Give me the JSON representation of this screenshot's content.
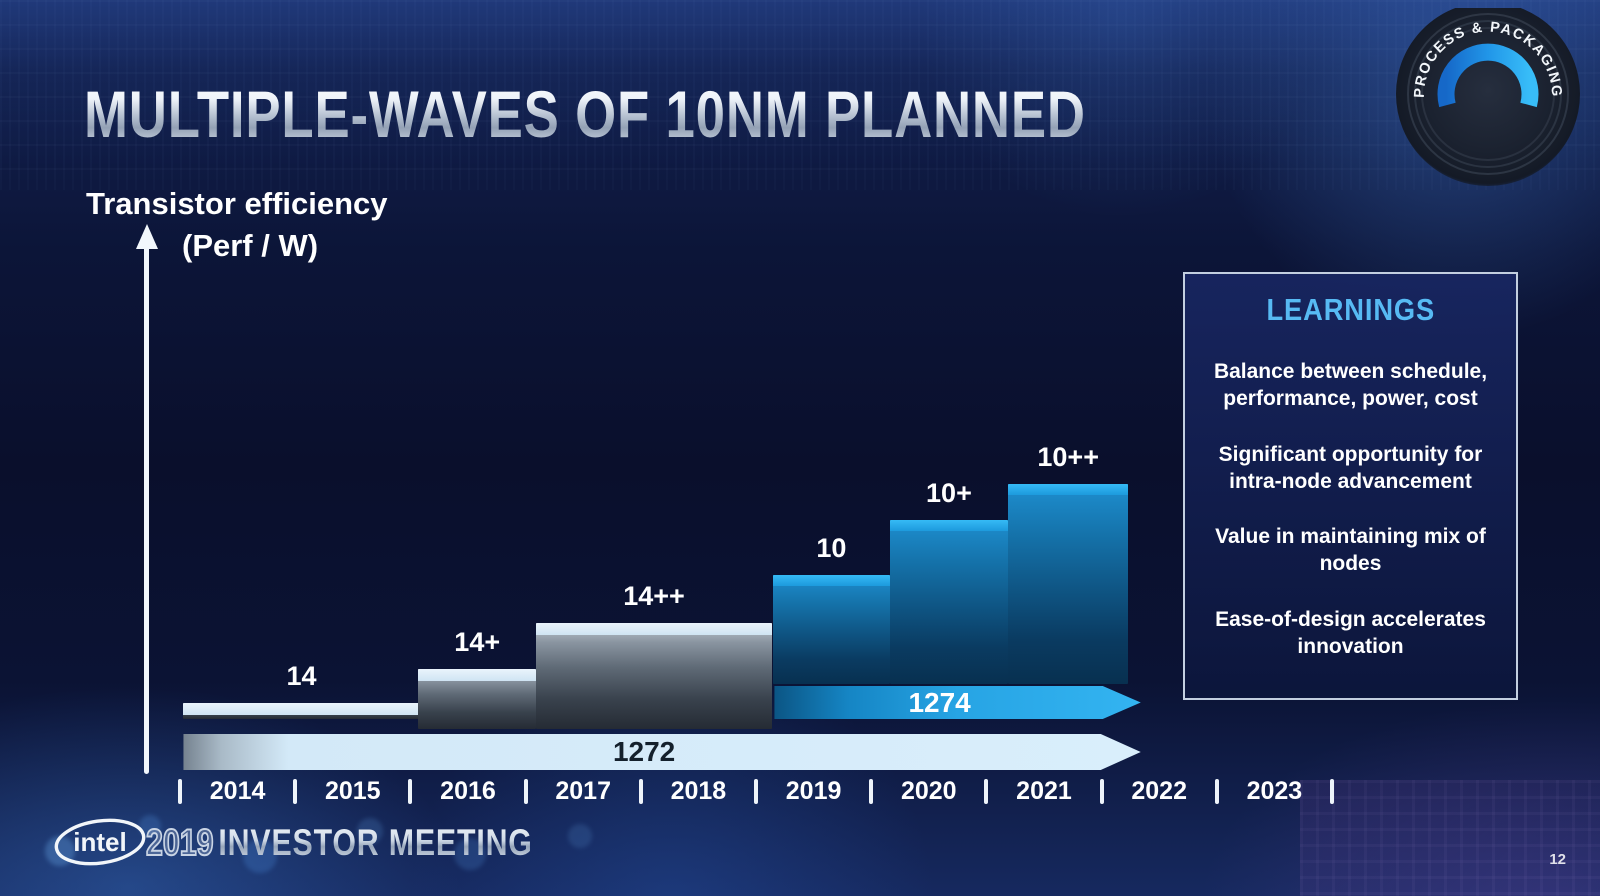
{
  "slide": {
    "title": "MULTIPLE-WAVES OF 10NM PLANNED",
    "badge_text": "PROCESS & PACKAGING",
    "page_number": "12",
    "footer": {
      "logo_text": "intel",
      "event_year": "2019",
      "event_name": "INVESTOR MEETING"
    }
  },
  "chart_data": {
    "type": "bar",
    "title": "MULTIPLE-WAVES OF 10NM PLANNED",
    "ylabel": "Transistor efficiency (Perf / W)",
    "ylabel_lines": [
      "Transistor efficiency",
      "(Perf / W)"
    ],
    "xlabel": "",
    "x_axis": {
      "years": [
        "2014",
        "2015",
        "2016",
        "2017",
        "2018",
        "2019",
        "2020",
        "2021",
        "2022",
        "2023"
      ],
      "separator": "|"
    },
    "y_axis": {
      "numeric_ticks": false,
      "note": "relative transistor efficiency, unlabeled scale"
    },
    "bars": [
      {
        "label": "14",
        "family": "14nm",
        "theme": "silver",
        "year_span": [
          0.03,
          2.08
        ],
        "top_rel": 0.247,
        "bottom_rel": 0.192
      },
      {
        "label": "14+",
        "family": "14nm",
        "theme": "silver",
        "year_span": [
          2.07,
          3.09
        ],
        "top_rel": 0.364,
        "bottom_rel": 0.158
      },
      {
        "label": "14++",
        "family": "14nm",
        "theme": "silver",
        "year_span": [
          3.09,
          5.14
        ],
        "top_rel": 0.522,
        "bottom_rel": 0.158
      },
      {
        "label": "10",
        "family": "10nm",
        "theme": "blue",
        "year_span": [
          5.15,
          6.16
        ],
        "top_rel": 0.687,
        "bottom_rel": 0.313
      },
      {
        "label": "10+",
        "family": "10nm",
        "theme": "blue",
        "year_span": [
          6.16,
          7.19
        ],
        "top_rel": 0.876,
        "bottom_rel": 0.313
      },
      {
        "label": "10++",
        "family": "10nm",
        "theme": "blue",
        "year_span": [
          7.19,
          8.23
        ],
        "top_rel": 1.0,
        "bottom_rel": 0.313
      }
    ],
    "fab_arrows": [
      {
        "label": "1272",
        "style": "pale",
        "year_span": [
          0.03,
          8.34
        ],
        "text_color": "#14202c"
      },
      {
        "label": "1274",
        "style": "bright",
        "year_span": [
          5.16,
          8.34
        ],
        "text_color": "#ffffff"
      }
    ],
    "colors": {
      "node_silver": "#8d99a6",
      "node_blue": "#1e9ce0",
      "arrow_1272": "#d7ecfa",
      "arrow_1274": "#29a9e8",
      "learnings_accent": "#57baf3"
    },
    "legend": null
  },
  "learnings": {
    "title": "LEARNINGS",
    "items": [
      "Balance between schedule, performance, power, cost",
      "Significant opportunity for intra-node advancement",
      "Value in maintaining mix of nodes",
      "Ease-of-design accelerates innovation"
    ]
  }
}
